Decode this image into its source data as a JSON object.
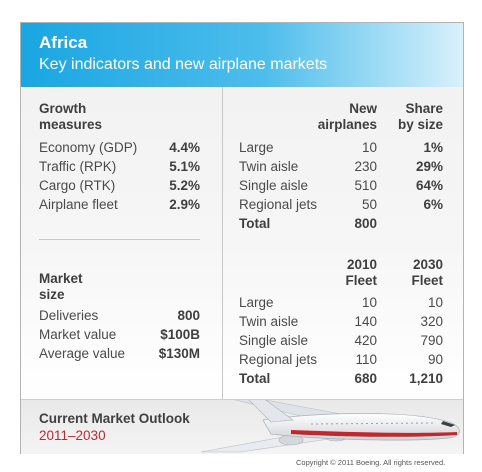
{
  "header": {
    "title": "Africa",
    "subtitle": "Key indicators and new airplane markets"
  },
  "growth": {
    "heading_line1": "Growth",
    "heading_line2": "measures",
    "rows": [
      {
        "label": "Economy (GDP)",
        "value": "4.4%"
      },
      {
        "label": "Traffic (RPK)",
        "value": "5.1%"
      },
      {
        "label": "Cargo (RTK)",
        "value": "5.2%"
      },
      {
        "label": "Airplane fleet",
        "value": "2.9%"
      }
    ]
  },
  "market": {
    "heading_line1": "Market",
    "heading_line2": "size",
    "rows": [
      {
        "label": "Deliveries",
        "value": "800"
      },
      {
        "label": "Market value",
        "value": "$100B"
      },
      {
        "label": "Average value",
        "value": "$130M"
      }
    ]
  },
  "new_airplanes": {
    "col1_line1": "New",
    "col1_line2": "airplanes",
    "col2_line1": "Share",
    "col2_line2": "by size",
    "rows": [
      {
        "label": "Large",
        "new": "10",
        "share": "1%"
      },
      {
        "label": "Twin aisle",
        "new": "230",
        "share": "29%"
      },
      {
        "label": "Single aisle",
        "new": "510",
        "share": "64%"
      },
      {
        "label": "Regional jets",
        "new": "50",
        "share": "6%"
      }
    ],
    "total_label": "Total",
    "total_value": "800"
  },
  "fleet": {
    "col1_line1": "2010",
    "col1_line2": "Fleet",
    "col2_line1": "2030",
    "col2_line2": "Fleet",
    "rows": [
      {
        "label": "Large",
        "y2010": "10",
        "y2030": "10"
      },
      {
        "label": "Twin aisle",
        "y2010": "140",
        "y2030": "320"
      },
      {
        "label": "Single aisle",
        "y2010": "420",
        "y2030": "790"
      },
      {
        "label": "Regional jets",
        "y2010": "110",
        "y2030": "90"
      }
    ],
    "total_label": "Total",
    "total_2010": "680",
    "total_2030": "1,210"
  },
  "footer": {
    "title": "Current Market Outlook",
    "years": "2011–2030",
    "accent_color": "#c0282d"
  },
  "copyright": "Copyright © 2011 Boeing. All rights reserved."
}
